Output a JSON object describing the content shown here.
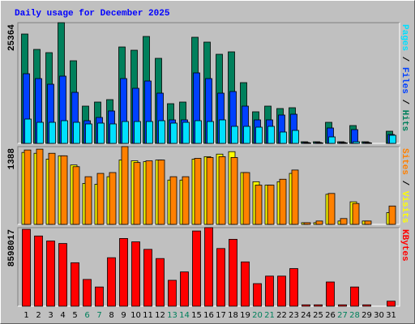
{
  "chart_data": [
    {
      "type": "bar",
      "title": "Daily usage for December 2025",
      "legend_separator": " / ",
      "ylim": [
        0,
        25364
      ],
      "yticks": [
        25364
      ],
      "series": [
        {
          "name": "Hits",
          "color": "#00805c",
          "values": [
            22980,
            19746,
            19066,
            25364,
            17363,
            7830,
            8682,
            9192,
            20257,
            19576,
            22470,
            17874,
            8341,
            8682,
            22300,
            21279,
            18725,
            19236,
            12767,
            6639,
            7830,
            7320,
            7490,
            340,
            340,
            4426,
            340,
            3745,
            340,
            0,
            2553
          ]
        },
        {
          "name": "Files",
          "color": "#0040ff",
          "values": [
            14640,
            13618,
            12427,
            14129,
            10724,
            4766,
            5447,
            6809,
            13618,
            11575,
            13108,
            10554,
            4937,
            4937,
            14810,
            13618,
            10554,
            10895,
            7830,
            4937,
            4937,
            5958,
            6128,
            200,
            200,
            3234,
            200,
            2894,
            200,
            0,
            1873
          ]
        },
        {
          "name": "Pages",
          "color": "#00e0ff",
          "values": [
            5107,
            4426,
            4426,
            4766,
            4426,
            4085,
            4256,
            4085,
            4596,
            4596,
            4596,
            4766,
            4256,
            4426,
            4766,
            4596,
            4937,
            3575,
            3575,
            3405,
            3575,
            2383,
            2724,
            100,
            100,
            1362,
            100,
            340,
            100,
            0,
            1702
          ]
        }
      ]
    },
    {
      "type": "bar",
      "ylim": [
        0,
        1388
      ],
      "yticks": [
        1388
      ],
      "series": [
        {
          "name": "Visits",
          "color": "#ffff00",
          "values": [
            1284,
            1269,
            1164,
            1224,
            1060,
            731,
            716,
            851,
            1149,
            1134,
            1119,
            1149,
            791,
            791,
            1164,
            1209,
            1254,
            1298,
            925,
            761,
            701,
            761,
            910,
            30,
            30,
            537,
            60,
            403,
            60,
            0,
            209
          ]
        },
        {
          "name": "Sites",
          "color": "#ff8000",
          "values": [
            1328,
            1343,
            1269,
            1224,
            1030,
            851,
            910,
            925,
            1388,
            1104,
            1134,
            1149,
            851,
            851,
            1179,
            1194,
            1209,
            1194,
            925,
            701,
            701,
            806,
            970,
            30,
            60,
            552,
            104,
            373,
            60,
            0,
            328
          ]
        }
      ]
    },
    {
      "type": "bar",
      "ylim": [
        0,
        8598017
      ],
      "yticks": [
        8598017
      ],
      "categories": [
        "1",
        "2",
        "3",
        "4",
        "5",
        "6",
        "7",
        "8",
        "9",
        "10",
        "11",
        "12",
        "13",
        "14",
        "15",
        "16",
        "17",
        "18",
        "19",
        "20",
        "21",
        "22",
        "23",
        "24",
        "25",
        "26",
        "27",
        "28",
        "29",
        "30",
        "31"
      ],
      "category_colors": [
        "#000000",
        "#000000",
        "#000000",
        "#000000",
        "#000000",
        "#00805c",
        "#00805c",
        "#000000",
        "#000000",
        "#000000",
        "#000000",
        "#000000",
        "#00805c",
        "#00805c",
        "#000000",
        "#000000",
        "#000000",
        "#000000",
        "#000000",
        "#00805c",
        "#00805c",
        "#000000",
        "#000000",
        "#000000",
        "#000000",
        "#000000",
        "#00805c",
        "#00805c",
        "#000000",
        "#000000",
        "#000000"
      ],
      "series": [
        {
          "name": "KBytes",
          "color": "#ff0000",
          "values": [
            8415000,
            7683000,
            7135000,
            6860000,
            4756000,
            2927000,
            2104000,
            5305000,
            7409000,
            7043000,
            6220000,
            5214000,
            2836000,
            3750000,
            8232000,
            8598017,
            6311000,
            7318000,
            4848000,
            2470000,
            3293000,
            3293000,
            4116000,
            150000,
            150000,
            2653000,
            150000,
            2104000,
            150000,
            0,
            549000
          ]
        }
      ]
    }
  ]
}
